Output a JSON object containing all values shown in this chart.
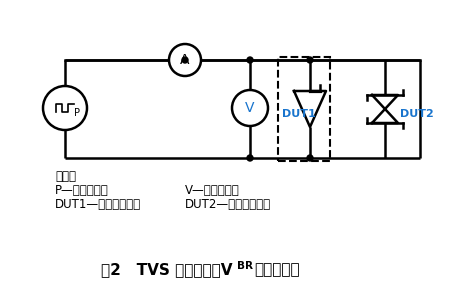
{
  "bg_color": "#ffffff",
  "line_color": "#000000",
  "dut_box_color": "#000000",
  "dut_label_color": "#1874CD",
  "title_color": "#000000",
  "legend_color": "#000000",
  "title": "图2   TVS 击穿电压（V",
  "title_sub": "BR",
  "title_end": "）测试电路",
  "legend_header": "元件：",
  "legend_line1_left": "P—脉冲恒流源",
  "legend_line1_right": "V—数字电压表",
  "legend_line2_left": "DUT1—受试单向器件",
  "legend_line2_right": "DUT2—受试双向器件"
}
